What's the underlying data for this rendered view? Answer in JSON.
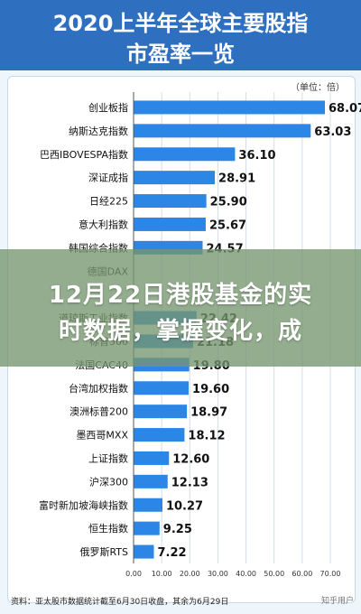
{
  "header": {
    "title_line1": "2020上半年全球主要股指",
    "title_line2": "市盈率一览"
  },
  "unit_label": "（单位：倍）",
  "overlay": {
    "line1": "12月22日港股基金的实",
    "line2": "时数据，掌握变化，成"
  },
  "source": "资料：亚太股市数据统计截至6月30日收盘，其余为6月29日",
  "watermark": "知乎用户",
  "colors": {
    "bar": "#2c86e6",
    "header": "#2f6fbf"
  },
  "chart_data": {
    "type": "bar",
    "orientation": "horizontal",
    "categories": [
      "创业板指",
      "纳斯达克指数",
      "巴西IBOVESPA指数",
      "深证成指",
      "日经225",
      "意大利指数",
      "韩国综合指数",
      "德国DAX",
      "",
      "道琼斯工业指数",
      "标普500",
      "法国CAC40",
      "台湾加权指数",
      "澳洲标普200",
      "墨西哥MXX",
      "上证指数",
      "沪深300",
      "富时新加坡海峡指数",
      "恒生指数",
      "俄罗斯RTS"
    ],
    "values": [
      68.07,
      63.03,
      36.1,
      28.91,
      25.9,
      25.67,
      24.57,
      null,
      null,
      22.42,
      21.18,
      19.8,
      19.6,
      18.97,
      18.12,
      12.6,
      12.13,
      10.27,
      9.25,
      7.22
    ],
    "value_labels": [
      "68.07",
      "63.03",
      "36.10",
      "28.91",
      "25.90",
      "25.67",
      "24.57",
      "",
      "",
      "22.42",
      "21.18",
      "19.80",
      "19.60",
      "18.97",
      "18.12",
      "12.60",
      "12.13",
      "10.27",
      "9.25",
      "7.22"
    ],
    "xlim": [
      0,
      70
    ],
    "xticks": [
      "0.00",
      "10.00",
      "20.00",
      "30.00",
      "40.00",
      "50.00",
      "60.00",
      "70.00"
    ],
    "grid": true
  }
}
